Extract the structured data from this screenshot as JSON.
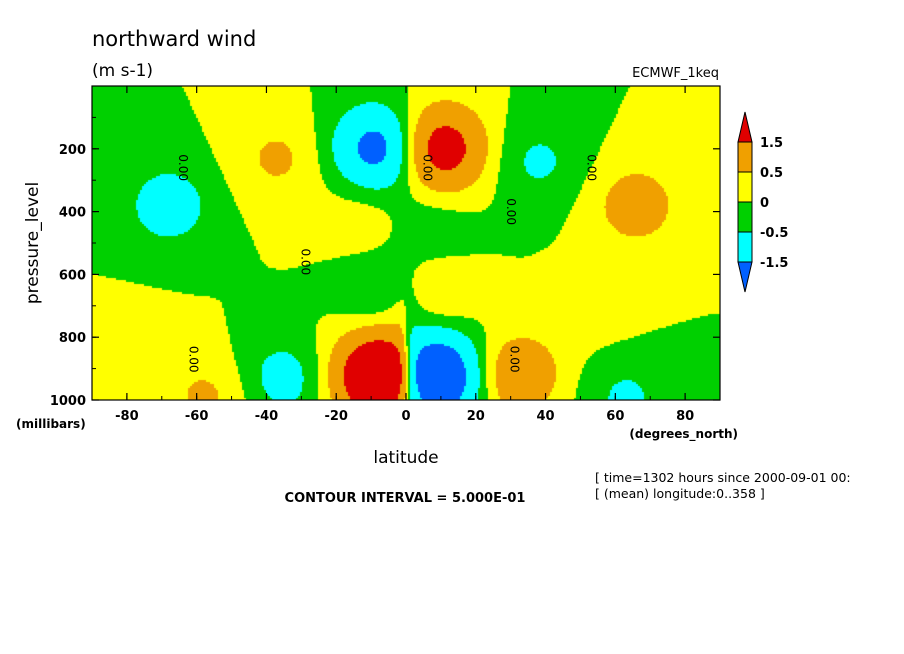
{
  "chart_data": {
    "type": "heatmap",
    "title": "northward wind",
    "units": "(m s-1)",
    "dataset": "ECMWF_1keq",
    "xlabel": "latitude",
    "ylabel": "pressure_level",
    "xunits": "(degrees_north)",
    "yunits": "(millibars)",
    "xlim": [
      -90,
      90
    ],
    "ylim": [
      1000,
      0
    ],
    "x_ticks": [
      "-80",
      "-60",
      "-40",
      "-20",
      "0",
      "20",
      "40",
      "60",
      "80"
    ],
    "y_ticks": [
      "200",
      "400",
      "600",
      "800",
      "1000"
    ],
    "contour_interval": "CONTOUR INTERVAL = 5.000E-01",
    "time_note": "[ time=1302 hours since 2000-09-01 00:",
    "longitude_note": "[ (mean) longitude:0..358 ]",
    "contour_label": "0.00",
    "legend": {
      "labels": [
        "1.5",
        "0.5",
        "0",
        "-0.5",
        "-1.5"
      ],
      "colors": [
        "#e00000",
        "#f0a000",
        "#ffff00",
        "#00d000",
        "#00ffff",
        "#0060ff"
      ]
    },
    "features": [
      {
        "lat": -8,
        "p": 200,
        "value": -2.0
      },
      {
        "lat": 10,
        "p": 200,
        "value": 2.2
      },
      {
        "lat": -7,
        "p": 930,
        "value": 3.0
      },
      {
        "lat": 8,
        "p": 930,
        "value": -2.7
      },
      {
        "lat": -35,
        "p": 930,
        "value": -0.8
      },
      {
        "lat": 32,
        "p": 920,
        "value": 1.2
      },
      {
        "lat": -57,
        "p": 990,
        "value": 0.6
      },
      {
        "lat": -37,
        "p": 230,
        "value": 0.6
      },
      {
        "lat": 38,
        "p": 240,
        "value": -0.6
      },
      {
        "lat": -7,
        "p": 690,
        "value": -0.6
      },
      {
        "lat": 8,
        "p": 690,
        "value": 0.6
      },
      {
        "lat": 63,
        "p": 990,
        "value": -0.6
      },
      {
        "lat": 7,
        "p": 440,
        "value": -0.3
      },
      {
        "lat": -12,
        "p": 400,
        "value": 0.3
      },
      {
        "lat": -68,
        "p": 380,
        "value": -0.9
      },
      {
        "lat": 66,
        "p": 380,
        "value": 0.9
      },
      {
        "lat": -78,
        "p": 860,
        "value": 0.3
      },
      {
        "lat": 55,
        "p": 720,
        "value": 0.2
      }
    ]
  }
}
